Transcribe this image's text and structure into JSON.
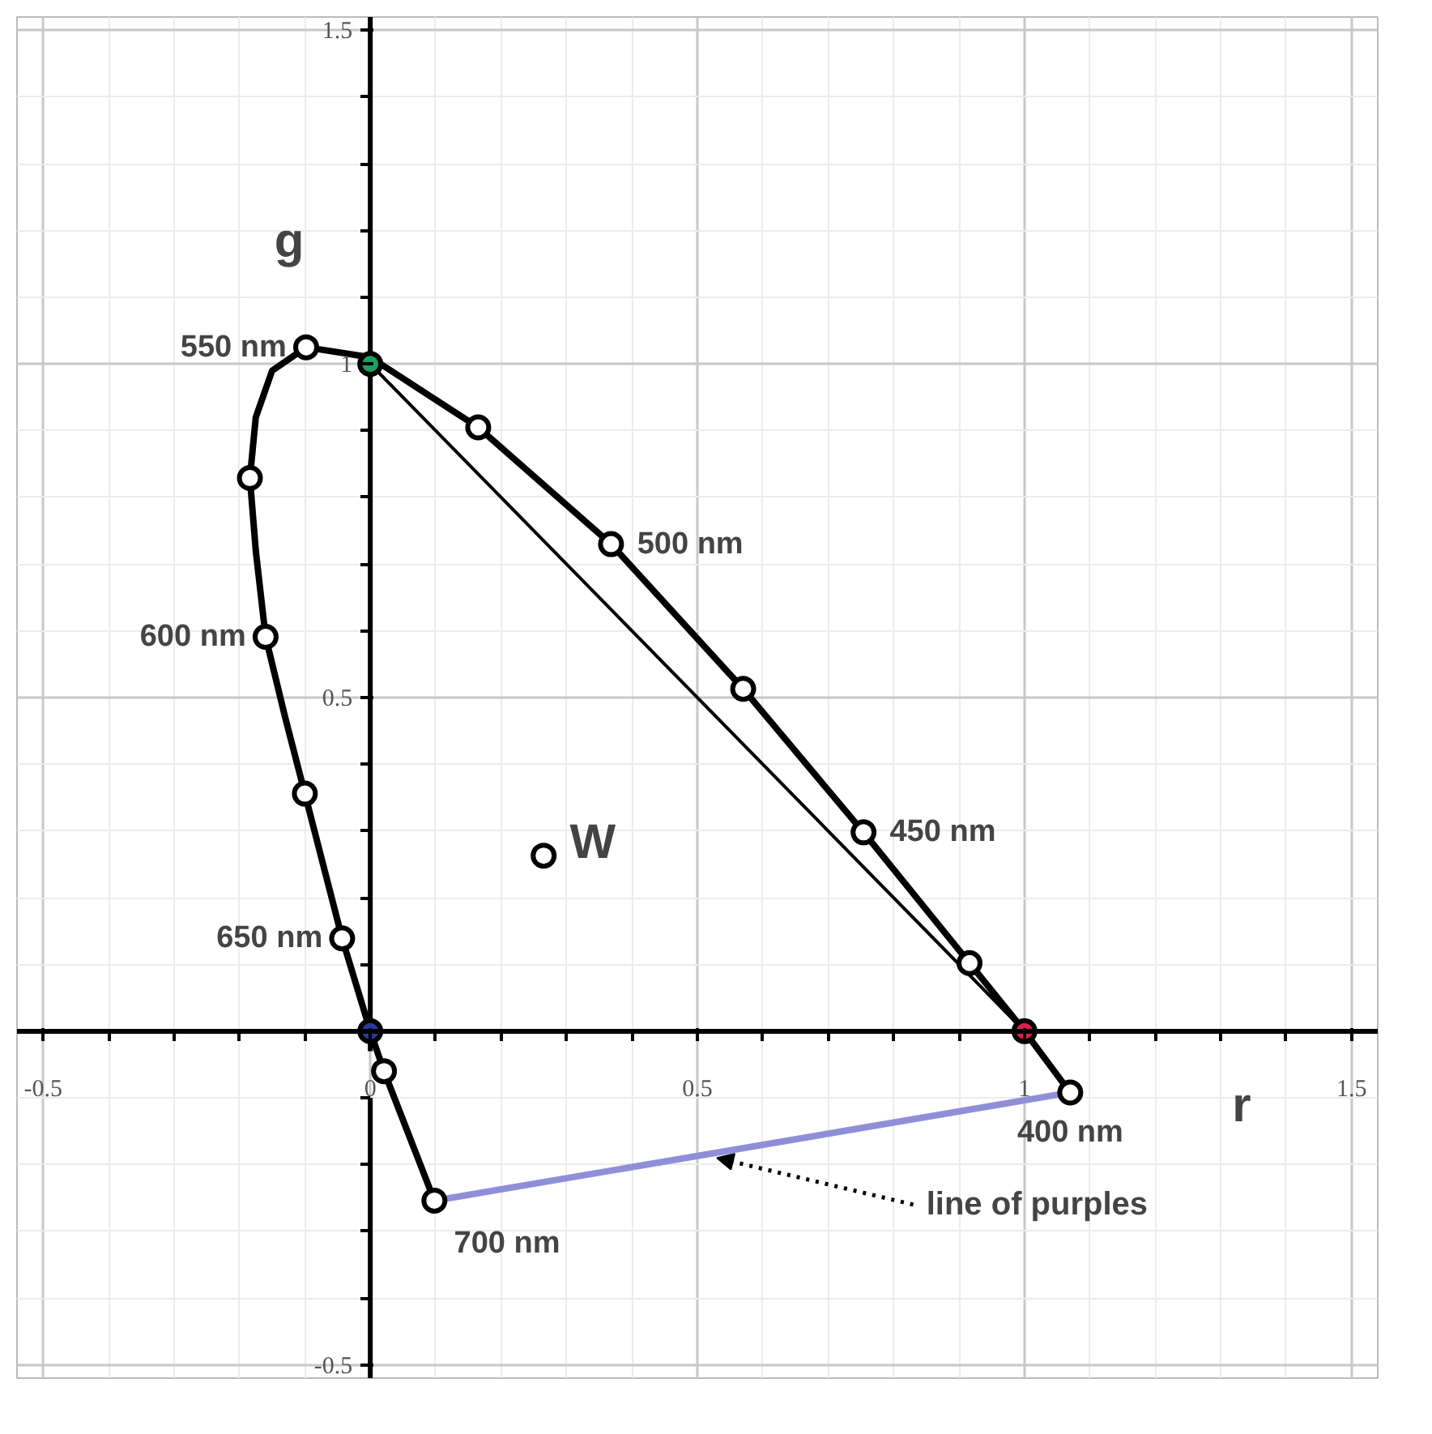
{
  "chart_data": {
    "type": "line",
    "xlabel": "r",
    "ylabel": "g",
    "xlim": [
      -0.54,
      1.54
    ],
    "ylim": [
      -0.52,
      1.52
    ],
    "xticks": [
      -0.5,
      0,
      0.5,
      1,
      1.5
    ],
    "yticks": [
      -0.5,
      0.5,
      1,
      1.5
    ],
    "grid": true,
    "series": [
      {
        "color": "#000000",
        "x": [
          1.07,
          1.0,
          0.916,
          0.754,
          0.57,
          0.368,
          0.165,
          0.0,
          -0.098,
          -0.15,
          -0.175,
          -0.184,
          -0.175,
          -0.16,
          -0.13,
          -0.1,
          -0.043,
          0.0,
          0.021,
          0.098
        ],
        "values": [
          -0.092,
          0.0,
          0.102,
          0.298,
          0.513,
          0.73,
          0.905,
          1.01,
          1.025,
          0.99,
          0.92,
          0.829,
          0.72,
          0.591,
          0.47,
          0.356,
          0.139,
          0.0,
          -0.06,
          -0.254
        ]
      },
      {
        "color": "#000000",
        "x": [
          0,
          1
        ],
        "values": [
          1,
          0
        ]
      },
      {
        "color": "#8f8fd8",
        "x": [
          0.098,
          1.07
        ],
        "values": [
          -0.254,
          -0.092
        ]
      },
      {
        "type": "scatter",
        "marker": "circle",
        "color": "#ffffff",
        "x": [
          1.07,
          0.916,
          0.754,
          0.57,
          0.368,
          0.165,
          -0.098,
          -0.184,
          -0.16,
          -0.1,
          -0.043,
          0.021,
          0.098,
          0.265
        ],
        "values": [
          -0.092,
          0.102,
          0.298,
          0.513,
          0.73,
          0.905,
          1.025,
          0.829,
          0.591,
          0.356,
          0.139,
          -0.06,
          -0.254,
          0.263
        ]
      },
      {
        "type": "scatter",
        "marker": "circle",
        "colors": [
          "#1fa060",
          "#e0204a",
          "#2b3a9a"
        ],
        "x": [
          0,
          1,
          0
        ],
        "values": [
          1,
          0,
          0
        ]
      }
    ],
    "annotations": [
      {
        "text": "550 nm",
        "x": -0.098,
        "y": 1.025
      },
      {
        "text": "500 nm",
        "x": 0.368,
        "y": 0.73
      },
      {
        "text": "600 nm",
        "x": -0.16,
        "y": 0.591
      },
      {
        "text": "450 nm",
        "x": 0.754,
        "y": 0.298
      },
      {
        "text": "650 nm",
        "x": -0.043,
        "y": 0.139
      },
      {
        "text": "400 nm",
        "x": 1.07,
        "y": -0.092
      },
      {
        "text": "700 nm",
        "x": 0.098,
        "y": -0.254
      },
      {
        "text": "W",
        "x": 0.265,
        "y": 0.263
      },
      {
        "text": "line of purples",
        "x": 0.53,
        "y": -0.19
      }
    ]
  }
}
